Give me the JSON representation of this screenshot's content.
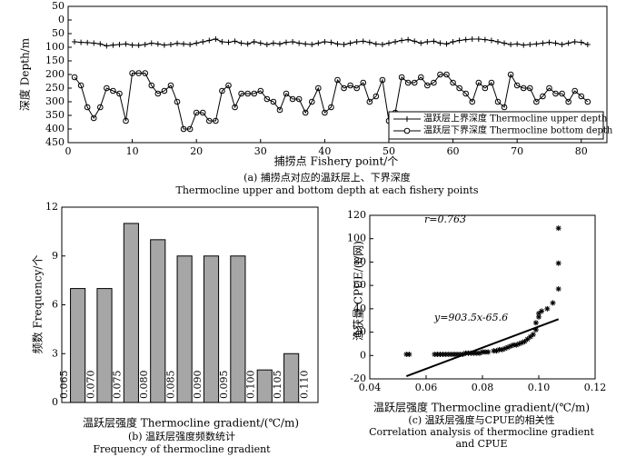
{
  "chart_data": [
    {
      "type": "line",
      "ylabel": "深度 Depth/m",
      "xlabel": "捕捞点 Fishery point/个",
      "caption": [
        "(a) 捕捞点对应的温跃层上、下界深度",
        "Thermocline upper and bottom depth at each fishery points"
      ],
      "x": [
        1,
        2,
        3,
        4,
        5,
        6,
        7,
        8,
        9,
        10,
        11,
        12,
        13,
        14,
        15,
        16,
        17,
        18,
        19,
        20,
        21,
        22,
        23,
        24,
        25,
        26,
        27,
        28,
        29,
        30,
        31,
        32,
        33,
        34,
        35,
        36,
        37,
        38,
        39,
        40,
        41,
        42,
        43,
        44,
        45,
        46,
        47,
        48,
        49,
        50,
        51,
        52,
        53,
        54,
        55,
        56,
        57,
        58,
        59,
        60,
        61,
        62,
        63,
        64,
        65,
        66,
        67,
        68,
        69,
        70,
        71,
        72,
        73,
        74,
        75,
        76,
        77,
        78,
        79,
        80,
        81
      ],
      "series": [
        {
          "name": "温跃层上界深度 Thermocline upper depth",
          "color": "#000000",
          "marker": "plus",
          "values": [
            80,
            82,
            83,
            85,
            88,
            95,
            92,
            90,
            88,
            92,
            93,
            90,
            85,
            88,
            92,
            90,
            86,
            88,
            90,
            85,
            80,
            75,
            70,
            80,
            82,
            78,
            85,
            88,
            80,
            85,
            90,
            85,
            88,
            82,
            80,
            85,
            88,
            90,
            85,
            80,
            82,
            88,
            90,
            85,
            80,
            78,
            82,
            88,
            90,
            85,
            80,
            75,
            72,
            78,
            85,
            80,
            78,
            85,
            88,
            80,
            75,
            72,
            70,
            70,
            72,
            75,
            80,
            85,
            90,
            88,
            92,
            90,
            88,
            85,
            82,
            85,
            90,
            85,
            80,
            82,
            90
          ]
        },
        {
          "name": "温跃层下界深度 Thermocline bottom depth",
          "color": "#000000",
          "marker": "circle",
          "values": [
            210,
            240,
            320,
            360,
            320,
            250,
            260,
            270,
            370,
            195,
            195,
            195,
            240,
            270,
            260,
            240,
            300,
            400,
            400,
            340,
            340,
            370,
            370,
            260,
            240,
            320,
            270,
            270,
            270,
            260,
            290,
            300,
            330,
            270,
            290,
            290,
            340,
            300,
            250,
            340,
            320,
            220,
            250,
            240,
            250,
            230,
            300,
            280,
            220,
            370,
            340,
            210,
            230,
            230,
            210,
            240,
            230,
            200,
            200,
            230,
            250,
            270,
            300,
            230,
            250,
            230,
            300,
            320,
            200,
            240,
            250,
            250,
            300,
            280,
            250,
            270,
            270,
            300,
            260,
            280,
            300
          ]
        }
      ],
      "xlim": [
        0,
        84
      ],
      "xticks": [
        0,
        10,
        20,
        30,
        40,
        50,
        60,
        70,
        80
      ],
      "ylim": [
        -50,
        450
      ],
      "y_inverted": true,
      "yticks": [
        {
          "value": -50,
          "label": "50"
        },
        0,
        50,
        100,
        150,
        200,
        250,
        300,
        350,
        400,
        450
      ],
      "legend": "lower right"
    },
    {
      "type": "histogram",
      "ylabel": "频数 Frequency/个",
      "xlabel": "温跃层强度 Thermocline gradient/(℃/m)",
      "caption": [
        "(b) 温跃层强度频数统计",
        "Frequency of thermocline gradient"
      ],
      "bins": [
        0.065,
        {
          "value": 0.07,
          "label": "0.070"
        },
        0.075,
        {
          "value": 0.08,
          "label": "0.080"
        },
        0.085,
        {
          "value": 0.09,
          "label": "0.090"
        },
        0.095,
        {
          "value": 0.1,
          "label": "0.100"
        },
        0.105,
        {
          "value": 0.11,
          "label": "0.110"
        }
      ],
      "values": [
        7,
        7,
        11,
        10,
        9,
        9,
        9,
        2,
        3
      ],
      "color": "#a6a6a6",
      "xlim": [
        0.0645,
        0.1125
      ],
      "ylim": [
        0,
        12
      ],
      "yticks": [
        0,
        3,
        6,
        9,
        12
      ]
    },
    {
      "type": "scatter",
      "ylabel": "渔获量 CPUE/(t/网)",
      "xlabel": "温跃层强度 Thermocline gradient/(℃/m)",
      "caption": [
        "(c) 温跃层强度与CPUE的相关性",
        "Correlation analysis of thermocline gradient",
        "and CPUE"
      ],
      "annotations": [
        "r=0.763",
        "y=903.5x-65.6"
      ],
      "x": [
        0.053,
        0.054,
        0.063,
        0.064,
        0.065,
        0.066,
        0.067,
        0.068,
        0.069,
        0.07,
        0.071,
        0.072,
        0.073,
        0.074,
        0.075,
        0.076,
        0.077,
        0.078,
        0.079,
        0.08,
        0.081,
        0.082,
        0.084,
        0.085,
        0.086,
        0.087,
        0.088,
        0.089,
        0.09,
        0.091,
        0.092,
        0.093,
        0.094,
        0.095,
        0.096,
        0.097,
        0.098,
        0.099,
        0.099,
        0.1,
        0.1,
        0.101,
        0.103,
        0.105,
        0.107,
        0.107,
        0.107
      ],
      "values": [
        1,
        1,
        1,
        1,
        1,
        1,
        1,
        1,
        1,
        1,
        1,
        1,
        1,
        2,
        2,
        2,
        2,
        2,
        2,
        3,
        3,
        3,
        4,
        4,
        5,
        5,
        6,
        7,
        8,
        9,
        9,
        10,
        11,
        12,
        14,
        16,
        18,
        22,
        28,
        33,
        36,
        38,
        40,
        45,
        57,
        79,
        109
      ],
      "color": "#000000",
      "trendline": {
        "x": [
          0.053,
          0.107
        ],
        "values": [
          -17.7,
          31.1
        ]
      },
      "xlim": [
        0.04,
        0.12
      ],
      "xticks": [
        0.04,
        0.06,
        0.08,
        {
          "value": 0.1,
          "label": "0.10"
        },
        0.12
      ],
      "ylim": [
        -20,
        120
      ],
      "yticks": [
        -20,
        0,
        20,
        40,
        60,
        80,
        100,
        120
      ]
    }
  ]
}
